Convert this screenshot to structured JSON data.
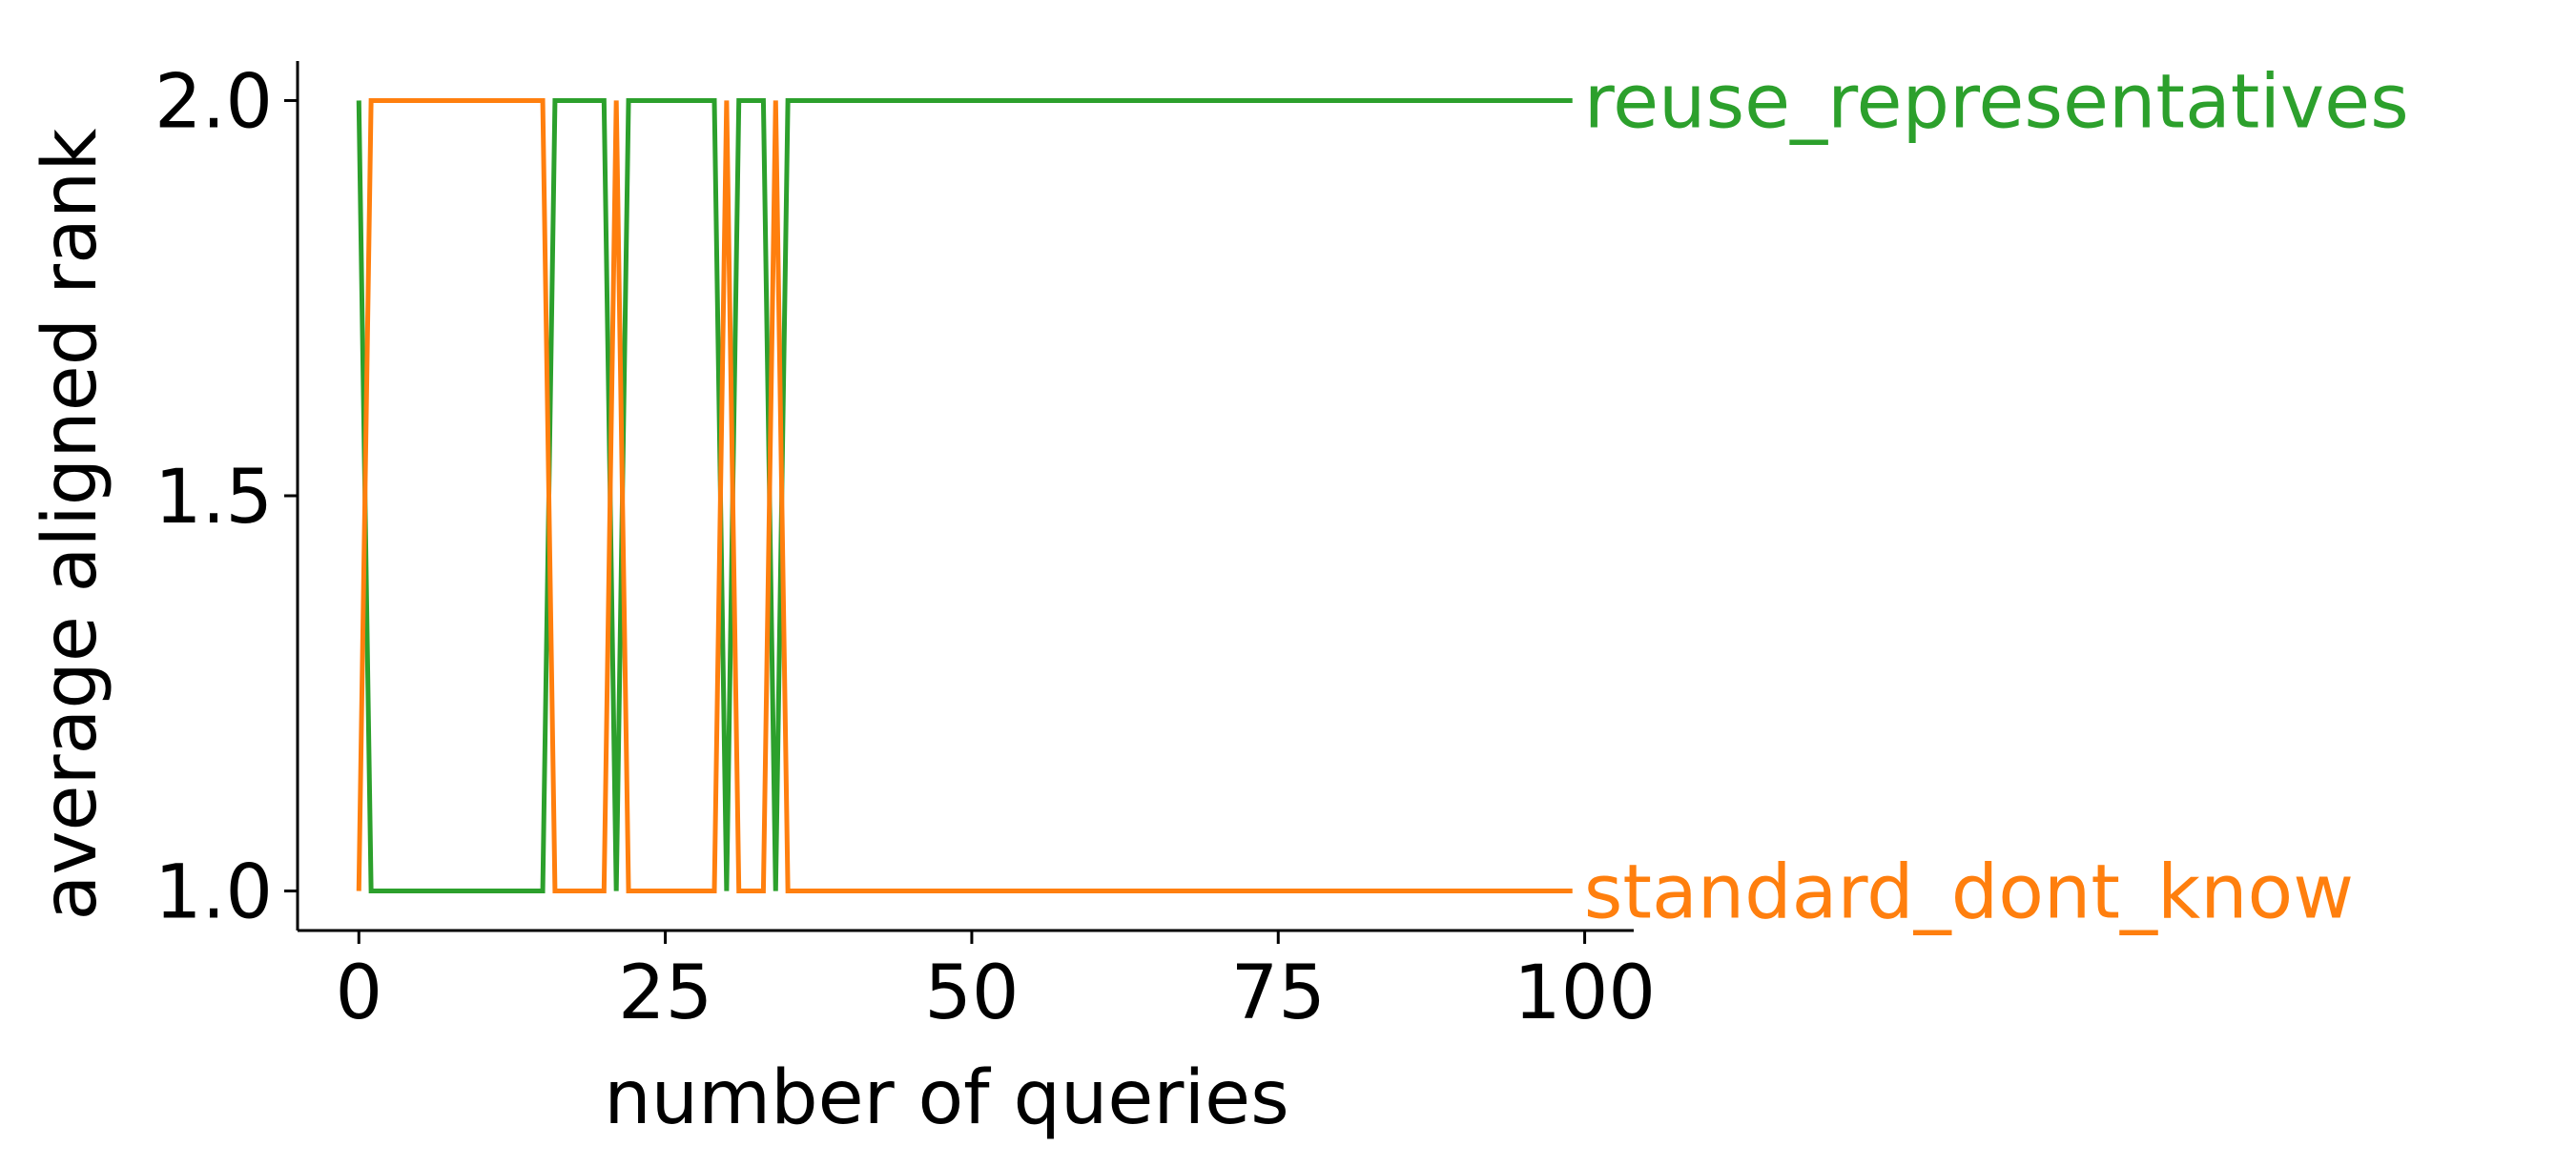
{
  "chart_data": {
    "type": "line",
    "title": "",
    "xlabel": "number of queries",
    "ylabel": "average aligned rank",
    "xlim": [
      -5,
      104
    ],
    "ylim": [
      0.95,
      2.05
    ],
    "xticks": [
      0,
      25,
      50,
      75,
      100
    ],
    "xtick_labels": [
      "0",
      "25",
      "50",
      "75",
      "100"
    ],
    "yticks": [
      1.0,
      1.5,
      2.0
    ],
    "ytick_labels": [
      "1.0",
      "1.5",
      "2.0"
    ],
    "grid": false,
    "legend": "none (series labels placed at line ends, right)",
    "series": [
      {
        "name": "reuse_representatives",
        "color": "#2ca02c",
        "values": [
          [
            0,
            2
          ],
          [
            1,
            1
          ],
          [
            15,
            1
          ],
          [
            16,
            2
          ],
          [
            20,
            2
          ],
          [
            21,
            1
          ],
          [
            22,
            2
          ],
          [
            29,
            2
          ],
          [
            30,
            1
          ],
          [
            31,
            2
          ],
          [
            33,
            2
          ],
          [
            34,
            1
          ],
          [
            35,
            2
          ],
          [
            99,
            2
          ]
        ]
      },
      {
        "name": "standard_dont_know",
        "color": "#ff7f0e",
        "values": [
          [
            0,
            1
          ],
          [
            1,
            2
          ],
          [
            15,
            2
          ],
          [
            16,
            1
          ],
          [
            20,
            1
          ],
          [
            21,
            2
          ],
          [
            22,
            1
          ],
          [
            29,
            1
          ],
          [
            30,
            2
          ],
          [
            31,
            1
          ],
          [
            33,
            1
          ],
          [
            34,
            2
          ],
          [
            35,
            1
          ],
          [
            99,
            1
          ]
        ]
      }
    ]
  }
}
